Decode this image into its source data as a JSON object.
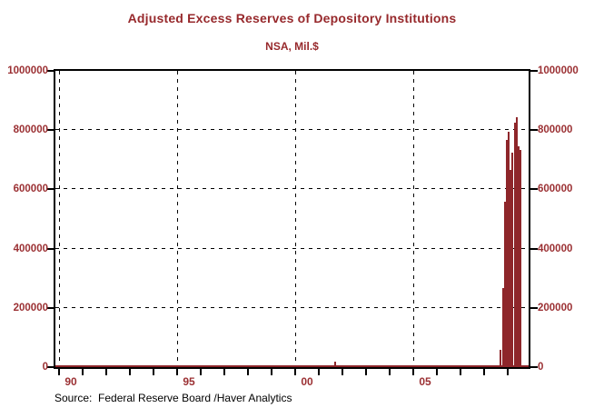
{
  "header": {
    "title": "Adjusted Excess Reserves of Depository Institutions",
    "subtitle": "NSA, Mil.$"
  },
  "footer": {
    "source": "Source:  Federal Reserve Board /Haver Analytics"
  },
  "colors": {
    "series": "#8e262a",
    "red_text": "#97292c",
    "axis": "#000000",
    "background": "#ffffff"
  },
  "chart_data": {
    "type": "bar",
    "title": "Adjusted Excess Reserves of Depository Institutions",
    "subtitle": "NSA, Mil.$",
    "unit": "Mil.$",
    "frequency": "monthly",
    "grid": "dashed",
    "legend": "none",
    "ylim": [
      0,
      1000000
    ],
    "yticks": [
      0,
      200000,
      400000,
      600000,
      800000,
      1000000
    ],
    "y_axis_sides": [
      "left",
      "right"
    ],
    "x_axis_start_year": 1989.83,
    "x_axis_end_year": 2010.0,
    "xticks_years": [
      1990,
      1991,
      1992,
      1993,
      1994,
      1995,
      1996,
      1997,
      1998,
      1999,
      2000,
      2001,
      2002,
      2003,
      2004,
      2005,
      2006,
      2007,
      2008,
      2009
    ],
    "xtick_labeled_years": [
      1990,
      1995,
      2000,
      2005
    ],
    "xtick_year_labels": [
      "90",
      "95",
      "00",
      "05"
    ],
    "gridline_years": [
      1990,
      1995,
      2000,
      2005
    ],
    "series": [
      {
        "name": "Adjusted Excess Reserves",
        "color": "#8e262a",
        "values_by_year": {
          "1989": [
            null,
            null,
            null,
            null,
            null,
            null,
            null,
            null,
            null,
            null,
            900,
            950
          ],
          "1990": [
            1000,
            950,
            900,
            1000,
            950,
            900,
            1000,
            1100,
            950,
            900,
            1000,
            1200
          ],
          "1991": [
            1100,
            1000,
            950,
            1000,
            900,
            950,
            1000,
            950,
            900,
            1000,
            1050,
            1300
          ],
          "1992": [
            1200,
            1100,
            1000,
            1100,
            1000,
            1050,
            1100,
            1000,
            950,
            1000,
            1100,
            1400
          ],
          "1993": [
            1200,
            1000,
            950,
            1000,
            1000,
            1100,
            1000,
            950,
            1000,
            1000,
            1100,
            1300
          ],
          "1994": [
            1100,
            1000,
            1000,
            950,
            1000,
            1000,
            1100,
            1000,
            950,
            1000,
            1000,
            1200
          ],
          "1995": [
            1100,
            1000,
            950,
            1000,
            1000,
            1000,
            1100,
            1000,
            950,
            1000,
            1000,
            1200
          ],
          "1996": [
            1100,
            1000,
            1000,
            950,
            1000,
            1100,
            1000,
            950,
            1000,
            1000,
            1050,
            1300
          ],
          "1997": [
            1200,
            1000,
            950,
            1000,
            1000,
            1000,
            1100,
            1000,
            1000,
            1050,
            1100,
            1400
          ],
          "1998": [
            1200,
            1100,
            1000,
            1000,
            950,
            1000,
            1100,
            1000,
            1000,
            1000,
            1100,
            1500
          ],
          "1999": [
            1300,
            1100,
            1000,
            1000,
            1000,
            1100,
            1000,
            1000,
            1000,
            1100,
            1200,
            2000
          ],
          "2000": [
            1500,
            1200,
            1100,
            1000,
            1000,
            1100,
            1000,
            1000,
            1000,
            1000,
            1100,
            1300
          ],
          "2001": [
            1200,
            1100,
            1000,
            1000,
            1000,
            1100,
            1100,
            1300,
            19000,
            1600,
            1400,
            1400
          ],
          "2002": [
            1300,
            1200,
            1100,
            1100,
            1000,
            1200,
            1100,
            1100,
            1000,
            1100,
            1200,
            1500
          ],
          "2003": [
            1400,
            1300,
            1800,
            1500,
            1400,
            1500,
            2000,
            2500,
            2200,
            1800,
            2600,
            2000
          ],
          "2004": [
            1600,
            1400,
            1300,
            1400,
            1300,
            1400,
            1500,
            1400,
            1300,
            1400,
            1400,
            1600
          ],
          "2005": [
            1500,
            1400,
            1300,
            1400,
            1300,
            1400,
            1400,
            1300,
            1300,
            1400,
            1400,
            1700
          ],
          "2006": [
            1600,
            1400,
            1400,
            1300,
            1400,
            1400,
            1500,
            1400,
            1300,
            1400,
            1400,
            1700
          ],
          "2007": [
            1600,
            1500,
            1400,
            1400,
            1400,
            1500,
            1500,
            1900,
            1700,
            1500,
            1600,
            4300
          ],
          "2008": [
            4600,
            2100,
            5600,
            3400,
            4800,
            2100,
            1900,
            2000,
            59500,
            268000,
            559000,
            767000
          ],
          "2009": [
            793000,
            667000,
            724000,
            824000,
            844000,
            744000,
            733000
          ]
        }
      }
    ]
  }
}
